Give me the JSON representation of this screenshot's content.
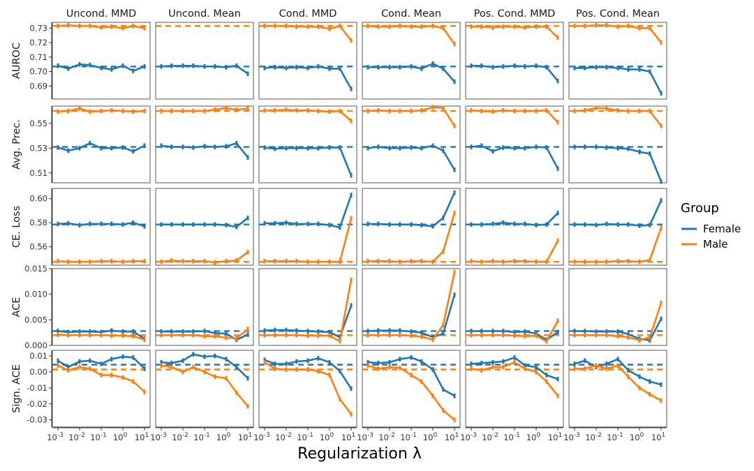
{
  "chart_data": {
    "type": "line",
    "xlabel": "Regularization λ",
    "x_scale": "log10",
    "x": [
      0.001,
      0.003,
      0.01,
      0.03,
      0.1,
      0.3,
      1,
      3,
      10
    ],
    "x_ticks": [
      {
        "base": "10",
        "exp": "-3",
        "value": 0.001
      },
      {
        "base": "10",
        "exp": "-2",
        "value": 0.01
      },
      {
        "base": "10",
        "exp": "-1",
        "value": 0.1
      },
      {
        "base": "10",
        "exp": "0",
        "value": 1
      },
      {
        "base": "10",
        "exp": "1",
        "value": 10
      }
    ],
    "columns": [
      "Uncond. MMD",
      "Uncond. Mean",
      "Cond. MMD",
      "Cond. Mean",
      "Pos. Cond. MMD",
      "Pos. Cond. Mean"
    ],
    "legend": {
      "title": "Group",
      "position": "right",
      "entries": [
        {
          "name": "Female",
          "color": "#1f77b4"
        },
        {
          "name": "Male",
          "color": "#ff7f0e"
        }
      ]
    },
    "rows": [
      {
        "ylabel": "AUROC",
        "ylim": [
          0.681,
          0.734
        ],
        "yticks": [
          0.69,
          0.7,
          0.71,
          0.72,
          0.73
        ],
        "ytick_labels": [
          "0.69",
          "0.70",
          "0.71",
          "0.72",
          "0.73"
        ],
        "baseline": {
          "Female": 0.7035,
          "Male": 0.7315
        },
        "panels": [
          {
            "Female": [
              0.704,
              0.702,
              0.705,
              0.7045,
              0.7025,
              0.7015,
              0.704,
              0.7005,
              0.7035
            ],
            "Male": [
              0.7315,
              0.732,
              0.7315,
              0.7315,
              0.7305,
              0.731,
              0.73,
              0.7315,
              0.73
            ]
          },
          {
            "Female": [
              0.7035,
              0.704,
              0.704,
              0.704,
              0.7035,
              0.7035,
              0.703,
              0.704,
              0.6985
            ]
          },
          {
            "Female": [
              0.7025,
              0.703,
              0.7025,
              0.703,
              0.7025,
              0.7035,
              0.702,
              0.702,
              0.688
            ],
            "Male": [
              0.7315,
              0.7315,
              0.7315,
              0.731,
              0.731,
              0.731,
              0.7295,
              0.7315,
              0.7215
            ]
          },
          {
            "Female": [
              0.703,
              0.703,
              0.703,
              0.703,
              0.7035,
              0.702,
              0.7055,
              0.702,
              0.693
            ],
            "Male": [
              0.7315,
              0.731,
              0.731,
              0.7315,
              0.731,
              0.731,
              0.7315,
              0.73,
              0.719
            ]
          },
          {
            "Female": [
              0.704,
              0.704,
              0.703,
              0.7035,
              0.704,
              0.7035,
              0.704,
              0.703,
              0.6935
            ],
            "Male": [
              0.731,
              0.731,
              0.7305,
              0.731,
              0.731,
              0.7305,
              0.731,
              0.731,
              0.7235
            ]
          },
          {
            "Female": [
              0.7025,
              0.7025,
              0.703,
              0.703,
              0.7025,
              0.7015,
              0.7015,
              0.7,
              0.685
            ],
            "Male": [
              0.7315,
              0.7315,
              0.732,
              0.732,
              0.731,
              0.7315,
              0.73,
              0.73,
              0.72
            ]
          }
        ]
      },
      {
        "ylabel": "Avg. Prec.",
        "ylim": [
          0.502,
          0.564
        ],
        "yticks": [
          0.51,
          0.53,
          0.55
        ],
        "ytick_labels": [
          "0.51",
          "0.53",
          "0.55"
        ],
        "baseline": {
          "Female": 0.531,
          "Male": 0.56
        },
        "panels": [
          {
            "Female": [
              0.5305,
              0.528,
              0.53,
              0.534,
              0.53,
              0.53,
              0.5305,
              0.5275,
              0.532
            ],
            "Male": [
              0.5595,
              0.56,
              0.562,
              0.5595,
              0.56,
              0.5605,
              0.56,
              0.5595,
              0.56
            ]
          },
          {
            "Female": [
              0.532,
              0.531,
              0.531,
              0.5305,
              0.5315,
              0.531,
              0.5315,
              0.534,
              0.5225
            ],
            "Male": [
              0.56,
              0.56,
              0.56,
              0.56,
              0.56,
              0.561,
              0.5625,
              0.561,
              0.562
            ]
          },
          {
            "Female": [
              0.5305,
              0.5295,
              0.53,
              0.53,
              0.53,
              0.53,
              0.5305,
              0.5305,
              0.508
            ],
            "Male": [
              0.5605,
              0.5605,
              0.561,
              0.5605,
              0.5605,
              0.56,
              0.5595,
              0.56,
              0.552
            ]
          },
          {
            "Female": [
              0.53,
              0.531,
              0.53,
              0.53,
              0.5305,
              0.53,
              0.532,
              0.528,
              0.5125
            ],
            "Male": [
              0.56,
              0.5605,
              0.56,
              0.56,
              0.56,
              0.5605,
              0.563,
              0.5625,
              0.548
            ]
          },
          {
            "Female": [
              0.531,
              0.532,
              0.5275,
              0.5305,
              0.53,
              0.53,
              0.531,
              0.5305,
              0.5135
            ],
            "Male": [
              0.5605,
              0.56,
              0.5595,
              0.5605,
              0.56,
              0.56,
              0.56,
              0.5605,
              0.551
            ]
          },
          {
            "Female": [
              0.531,
              0.531,
              0.531,
              0.5305,
              0.53,
              0.5295,
              0.527,
              0.5255,
              0.503
            ],
            "Male": [
              0.56,
              0.5605,
              0.5625,
              0.562,
              0.5605,
              0.56,
              0.56,
              0.56,
              0.548
            ]
          }
        ]
      },
      {
        "ylabel": "CE. Loss",
        "ylim": [
          0.5447,
          0.6085
        ],
        "yticks": [
          0.56,
          0.58,
          0.6
        ],
        "ytick_labels": [
          "0.56",
          "0.58",
          "0.60"
        ],
        "baseline": {
          "Female": 0.5785,
          "Male": 0.5475
        },
        "panels": [
          {
            "Female": [
              0.579,
              0.5795,
              0.578,
              0.579,
              0.579,
              0.579,
              0.5785,
              0.58,
              0.577
            ],
            "Male": [
              0.548,
              0.5475,
              0.5475,
              0.5475,
              0.548,
              0.548,
              0.5475,
              0.548,
              0.548
            ]
          },
          {
            "Female": [
              0.5785,
              0.5785,
              0.5785,
              0.5785,
              0.5785,
              0.5785,
              0.578,
              0.5765,
              0.584
            ],
            "Male": [
              0.5475,
              0.5485,
              0.548,
              0.548,
              0.548,
              0.547,
              0.548,
              0.5485,
              0.5555
            ]
          },
          {
            "Female": [
              0.5795,
              0.5795,
              0.58,
              0.579,
              0.579,
              0.579,
              0.578,
              0.576,
              0.603
            ],
            "Male": [
              0.548,
              0.548,
              0.548,
              0.548,
              0.5475,
              0.5475,
              0.5475,
              0.5475,
              0.5835
            ]
          },
          {
            "Female": [
              0.579,
              0.579,
              0.5785,
              0.5785,
              0.5785,
              0.578,
              0.577,
              0.584,
              0.605
            ],
            "Male": [
              0.548,
              0.548,
              0.548,
              0.5475,
              0.548,
              0.548,
              0.5475,
              0.556,
              0.588
            ]
          },
          {
            "Female": [
              0.5785,
              0.5785,
              0.579,
              0.58,
              0.579,
              0.579,
              0.578,
              0.5785,
              0.588
            ],
            "Male": [
              0.548,
              0.5475,
              0.548,
              0.5475,
              0.548,
              0.548,
              0.5475,
              0.5475,
              0.565
            ]
          },
          {
            "Female": [
              0.5785,
              0.5785,
              0.578,
              0.579,
              0.5785,
              0.5785,
              0.5775,
              0.578,
              0.5985
            ],
            "Male": [
              0.5475,
              0.5475,
              0.5475,
              0.5475,
              0.548,
              0.548,
              0.5475,
              0.549,
              0.576
            ]
          }
        ]
      },
      {
        "ylabel": "ACE",
        "ylim": [
          0,
          0.015
        ],
        "yticks": [
          0,
          0.005,
          0.01,
          0.015
        ],
        "ytick_labels": [
          "0.000",
          "0.005",
          "0.010",
          "0.015"
        ],
        "baseline": {
          "Female": 0.0028,
          "Male": 0.002
        },
        "panels": [
          {
            "Female": [
              0.0028,
              0.0026,
              0.0027,
              0.0027,
              0.0026,
              0.0029,
              0.0027,
              0.0027,
              0.0013
            ],
            "Male": [
              0.0021,
              0.002,
              0.002,
              0.002,
              0.002,
              0.0019,
              0.0019,
              0.0018,
              0.0011
            ]
          },
          {
            "Female": [
              0.0027,
              0.0027,
              0.0027,
              0.0027,
              0.0028,
              0.0024,
              0.0023,
              0.0011,
              0.0021
            ],
            "Male": [
              0.002,
              0.002,
              0.002,
              0.002,
              0.0018,
              0.0018,
              0.0015,
              0.0014,
              0.0032
            ]
          },
          {
            "Female": [
              0.0029,
              0.003,
              0.003,
              0.0029,
              0.0028,
              0.0027,
              0.0026,
              0.0016,
              0.0078
            ],
            "Male": [
              0.002,
              0.002,
              0.002,
              0.002,
              0.0019,
              0.0019,
              0.0019,
              0.0008,
              0.0128
            ]
          },
          {
            "Female": [
              0.0028,
              0.0029,
              0.0029,
              0.0029,
              0.0027,
              0.0025,
              0.0016,
              0.0023,
              0.0099
            ],
            "Male": [
              0.002,
              0.002,
              0.002,
              0.002,
              0.0019,
              0.0017,
              0.0011,
              0.004,
              0.0143
            ]
          },
          {
            "Female": [
              0.0028,
              0.0028,
              0.0028,
              0.0028,
              0.0026,
              0.0027,
              0.0023,
              0.0011,
              0.0026
            ],
            "Male": [
              0.002,
              0.002,
              0.002,
              0.002,
              0.0019,
              0.0018,
              0.0019,
              0.0008,
              0.0048
            ]
          },
          {
            "Female": [
              0.0028,
              0.0028,
              0.0027,
              0.0027,
              0.0027,
              0.0022,
              0.0013,
              0.001,
              0.0052
            ],
            "Male": [
              0.002,
              0.002,
              0.002,
              0.002,
              0.0018,
              0.0016,
              0.001,
              0.0016,
              0.0083
            ]
          }
        ]
      },
      {
        "ylabel": "Sign. ACE",
        "ylim": [
          -0.0345,
          0.0135
        ],
        "yticks": [
          -0.03,
          -0.02,
          -0.01,
          0,
          0.01
        ],
        "ytick_labels": [
          "-0.03",
          "-0.02",
          "-0.01",
          "0.00",
          "0.01"
        ],
        "baseline": {
          "Female": 0.0045,
          "Male": 0.0015
        },
        "panels": [
          {
            "Female": [
              0.007,
              0.003,
              0.0065,
              0.007,
              0.005,
              0.008,
              0.0095,
              0.009,
              0.002
            ],
            "Male": [
              0.004,
              0.001,
              0.003,
              0.002,
              -0.002,
              -0.002,
              -0.0035,
              -0.006,
              -0.0125
            ]
          },
          {
            "Female": [
              0.006,
              0.0055,
              0.007,
              0.011,
              0.0095,
              0.01,
              0.008,
              0.003,
              -0.004
            ],
            "Male": [
              0.004,
              0.003,
              0.0,
              0.003,
              0.0,
              -0.003,
              -0.004,
              -0.013,
              -0.0215
            ]
          },
          {
            "Female": [
              0.0075,
              0.005,
              0.005,
              0.0065,
              0.007,
              0.0085,
              0.006,
              0.0005,
              -0.0105
            ],
            "Male": [
              0.006,
              0.002,
              0.0015,
              0.0015,
              0.0015,
              0.0005,
              -0.002,
              -0.017,
              -0.0265
            ]
          },
          {
            "Female": [
              0.006,
              0.0055,
              0.006,
              0.008,
              0.009,
              0.0065,
              0.0015,
              -0.011,
              -0.015
            ],
            "Male": [
              0.004,
              0.002,
              0.003,
              0.0025,
              -0.002,
              -0.006,
              -0.015,
              -0.024,
              -0.03
            ]
          },
          {
            "Female": [
              0.005,
              0.0055,
              0.006,
              0.0065,
              0.009,
              0.004,
              0.003,
              -0.002,
              -0.0045
            ],
            "Male": [
              0.002,
              0.001,
              0.003,
              0.003,
              0.006,
              0.002,
              0.0,
              -0.006,
              -0.015
            ]
          },
          {
            "Female": [
              0.005,
              0.007,
              0.003,
              0.005,
              0.008,
              0.001,
              -0.003,
              -0.006,
              -0.008
            ],
            "Male": [
              0.002,
              0.002,
              0.004,
              0.002,
              0.004,
              -0.003,
              -0.01,
              -0.014,
              -0.018
            ]
          }
        ]
      }
    ]
  }
}
